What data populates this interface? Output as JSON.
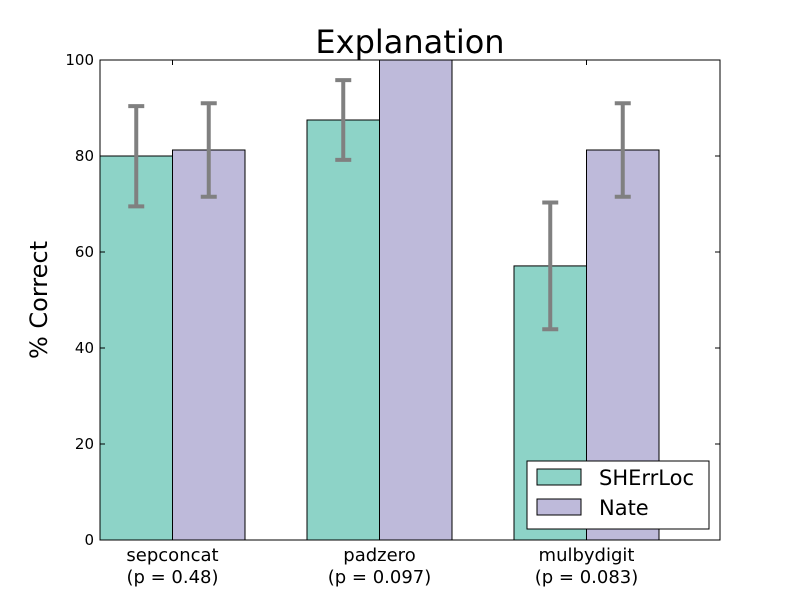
{
  "chart_data": {
    "type": "bar",
    "title": "Explanation",
    "xlabel": "",
    "ylabel": "% Correct",
    "ylim": [
      0,
      100
    ],
    "yticks": [
      0,
      20,
      40,
      60,
      80,
      100
    ],
    "categories": [
      {
        "name": "sepconcat",
        "pvalue": "(p = 0.48)"
      },
      {
        "name": "padzero",
        "pvalue": "(p = 0.097)"
      },
      {
        "name": "mulbydigit",
        "pvalue": "(p = 0.083)"
      }
    ],
    "series": [
      {
        "name": "SHErrLoc",
        "color": "#8dd3c7",
        "values": [
          80,
          87.5,
          57.1
        ],
        "err_low": [
          69.5,
          79.2,
          43.9
        ],
        "err_high": [
          90.4,
          95.8,
          70.3
        ]
      },
      {
        "name": "Nate",
        "color": "#bebada",
        "values": [
          81.25,
          100,
          81.25
        ],
        "err_low": [
          71.5,
          100,
          71.5
        ],
        "err_high": [
          91.0,
          100,
          91.0
        ]
      }
    ],
    "errorbar_color": "#808080",
    "grid": false,
    "legend_position": "lower-right"
  }
}
